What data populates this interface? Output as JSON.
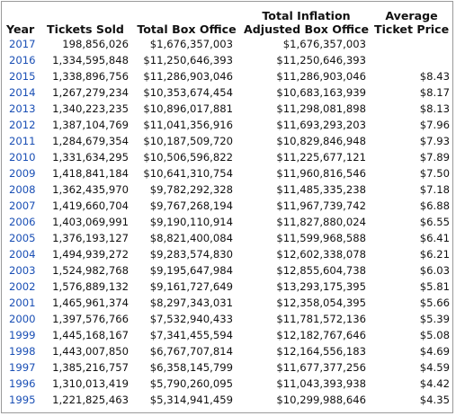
{
  "table": {
    "headers": {
      "year": "Year",
      "tickets_sold": "Tickets Sold",
      "total_box_office": "Total Box Office",
      "total_inflation_line1": "Total Inflation",
      "total_inflation_line2": "Adjusted Box Office",
      "avg_price_line1": "Average",
      "avg_price_line2": "Ticket Price"
    },
    "rows": [
      {
        "year": "2017",
        "tickets": "198,856,026",
        "box": "$1,676,357,003",
        "adj": "$1,676,357,003",
        "avg": ""
      },
      {
        "year": "2016",
        "tickets": "1,334,595,848",
        "box": "$11,250,646,393",
        "adj": "$11,250,646,393",
        "avg": ""
      },
      {
        "year": "2015",
        "tickets": "1,338,896,756",
        "box": "$11,286,903,046",
        "adj": "$11,286,903,046",
        "avg": "$8.43"
      },
      {
        "year": "2014",
        "tickets": "1,267,279,234",
        "box": "$10,353,674,454",
        "adj": "$10,683,163,939",
        "avg": "$8.17"
      },
      {
        "year": "2013",
        "tickets": "1,340,223,235",
        "box": "$10,896,017,881",
        "adj": "$11,298,081,898",
        "avg": "$8.13"
      },
      {
        "year": "2012",
        "tickets": "1,387,104,769",
        "box": "$11,041,356,916",
        "adj": "$11,693,293,203",
        "avg": "$7.96"
      },
      {
        "year": "2011",
        "tickets": "1,284,679,354",
        "box": "$10,187,509,720",
        "adj": "$10,829,846,948",
        "avg": "$7.93"
      },
      {
        "year": "2010",
        "tickets": "1,331,634,295",
        "box": "$10,506,596,822",
        "adj": "$11,225,677,121",
        "avg": "$7.89"
      },
      {
        "year": "2009",
        "tickets": "1,418,841,184",
        "box": "$10,641,310,754",
        "adj": "$11,960,816,546",
        "avg": "$7.50"
      },
      {
        "year": "2008",
        "tickets": "1,362,435,970",
        "box": "$9,782,292,328",
        "adj": "$11,485,335,238",
        "avg": "$7.18"
      },
      {
        "year": "2007",
        "tickets": "1,419,660,704",
        "box": "$9,767,268,194",
        "adj": "$11,967,739,742",
        "avg": "$6.88"
      },
      {
        "year": "2006",
        "tickets": "1,403,069,991",
        "box": "$9,190,110,914",
        "adj": "$11,827,880,024",
        "avg": "$6.55"
      },
      {
        "year": "2005",
        "tickets": "1,376,193,127",
        "box": "$8,821,400,084",
        "adj": "$11,599,968,588",
        "avg": "$6.41"
      },
      {
        "year": "2004",
        "tickets": "1,494,939,272",
        "box": "$9,283,574,830",
        "adj": "$12,602,338,078",
        "avg": "$6.21"
      },
      {
        "year": "2003",
        "tickets": "1,524,982,768",
        "box": "$9,195,647,984",
        "adj": "$12,855,604,738",
        "avg": "$6.03"
      },
      {
        "year": "2002",
        "tickets": "1,576,889,132",
        "box": "$9,161,727,649",
        "adj": "$13,293,175,395",
        "avg": "$5.81"
      },
      {
        "year": "2001",
        "tickets": "1,465,961,374",
        "box": "$8,297,343,031",
        "adj": "$12,358,054,395",
        "avg": "$5.66"
      },
      {
        "year": "2000",
        "tickets": "1,397,576,766",
        "box": "$7,532,940,433",
        "adj": "$11,781,572,136",
        "avg": "$5.39"
      },
      {
        "year": "1999",
        "tickets": "1,445,168,167",
        "box": "$7,341,455,594",
        "adj": "$12,182,767,646",
        "avg": "$5.08"
      },
      {
        "year": "1998",
        "tickets": "1,443,007,850",
        "box": "$6,767,707,814",
        "adj": "$12,164,556,183",
        "avg": "$4.69"
      },
      {
        "year": "1997",
        "tickets": "1,385,216,757",
        "box": "$6,358,145,799",
        "adj": "$11,677,377,256",
        "avg": "$4.59"
      },
      {
        "year": "1996",
        "tickets": "1,310,013,419",
        "box": "$5,790,260,095",
        "adj": "$11,043,393,938",
        "avg": "$4.42"
      },
      {
        "year": "1995",
        "tickets": "1,221,825,463",
        "box": "$5,314,941,459",
        "adj": "$10,299,988,646",
        "avg": "$4.35"
      }
    ]
  }
}
